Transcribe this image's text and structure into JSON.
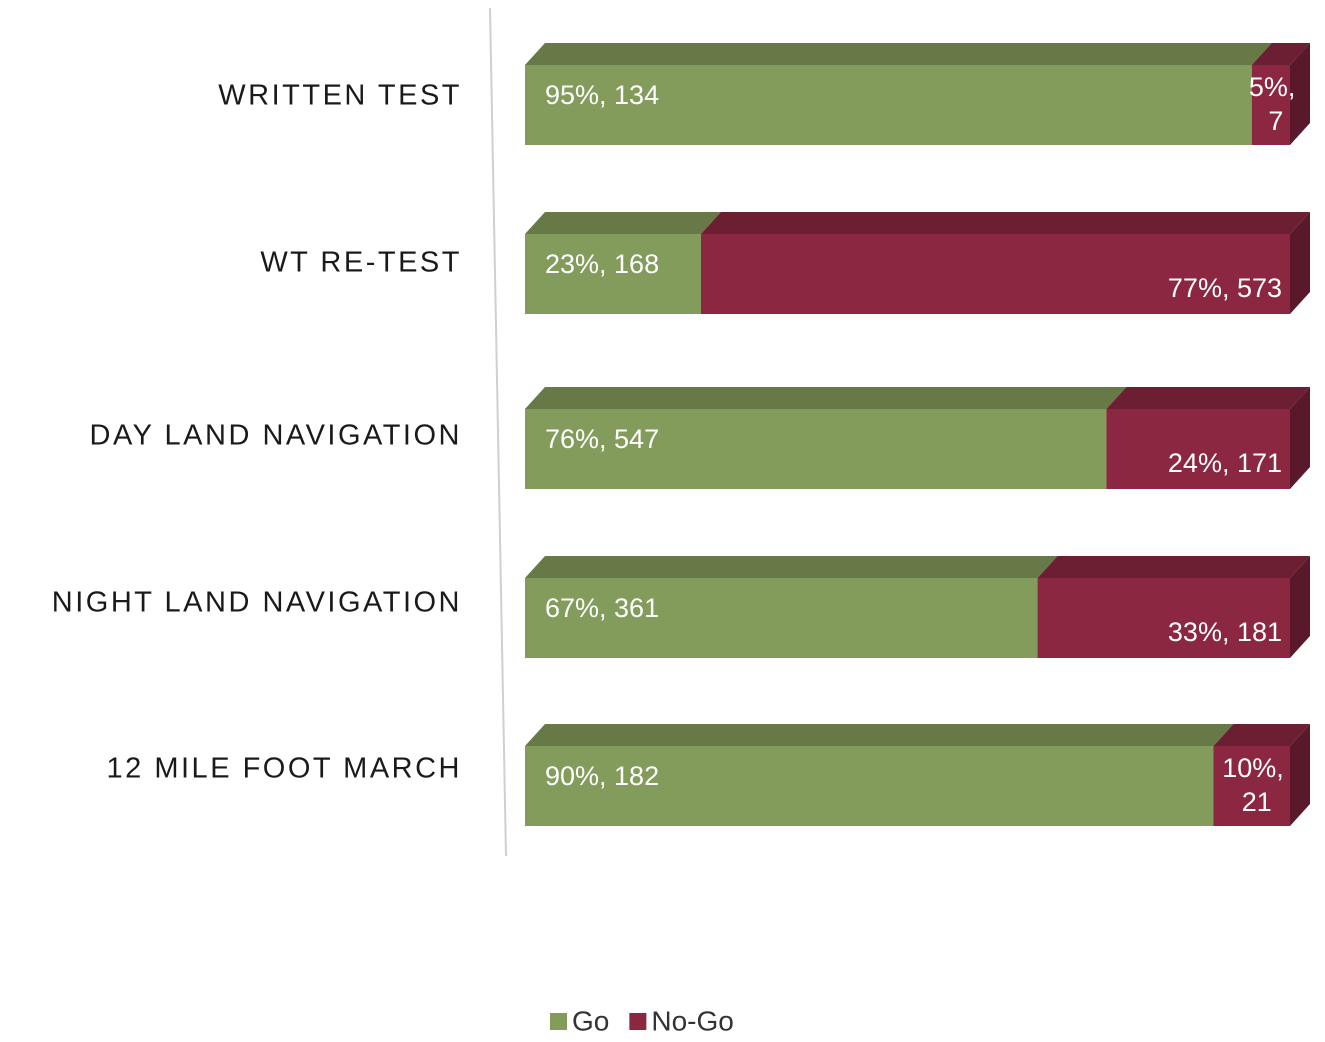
{
  "chart_data": {
    "type": "bar",
    "orientation": "horizontal",
    "stacked": true,
    "categories": [
      "WRITTEN TEST",
      "WT RE-TEST",
      "DAY LAND NAVIGATION",
      "NIGHT LAND NAVIGATION",
      "12 MILE FOOT MARCH"
    ],
    "xlim": [
      0,
      100
    ],
    "series": [
      {
        "name": "Go",
        "color": "#839b5b",
        "values": [
          95,
          23,
          76,
          67,
          90
        ],
        "value_labels": [
          "95%, 134",
          "23%, 168",
          "76%, 547",
          "67%, 361",
          "90%, 182"
        ]
      },
      {
        "name": "No-Go",
        "color": "#8b2741",
        "values": [
          5,
          77,
          24,
          33,
          10
        ],
        "value_labels": [
          "5%, 7",
          "77%, 573",
          "24%, 171",
          "33%, 181",
          "10%, 21"
        ]
      }
    ],
    "legend": "bottom"
  }
}
